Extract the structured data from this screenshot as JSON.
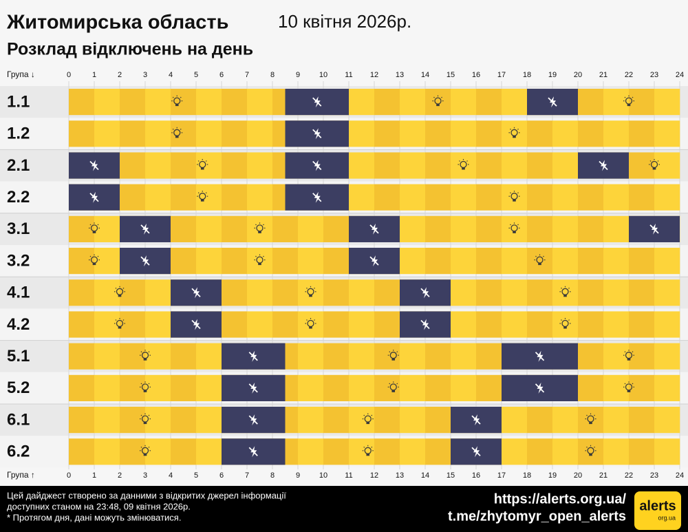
{
  "chart_data": {
    "type": "timeline",
    "title": "Житомирська область",
    "date": "10 квітня 2026р.",
    "subtitle": "Розклад відключень на день",
    "axis_label_top": "Група ↓",
    "axis_label_bottom": "Група ↑",
    "xlim": [
      0,
      24
    ],
    "xticks": [
      0,
      1,
      2,
      3,
      4,
      5,
      6,
      7,
      8,
      9,
      10,
      11,
      12,
      13,
      14,
      15,
      16,
      17,
      18,
      19,
      20,
      21,
      22,
      23,
      24
    ],
    "colors": {
      "on": "#f4c231",
      "on_alt": "#fdd43a",
      "off": "#3c3e62"
    },
    "rows": [
      {
        "name": "1.1",
        "outages": [
          [
            8.5,
            11
          ],
          [
            18,
            20
          ]
        ]
      },
      {
        "name": "1.2",
        "outages": [
          [
            8.5,
            11
          ]
        ]
      },
      {
        "name": "2.1",
        "outages": [
          [
            0,
            2
          ],
          [
            8.5,
            11
          ],
          [
            20,
            22
          ]
        ]
      },
      {
        "name": "2.2",
        "outages": [
          [
            0,
            2
          ],
          [
            8.5,
            11
          ]
        ]
      },
      {
        "name": "3.1",
        "outages": [
          [
            2,
            4
          ],
          [
            11,
            13
          ],
          [
            22,
            24
          ]
        ]
      },
      {
        "name": "3.2",
        "outages": [
          [
            2,
            4
          ],
          [
            11,
            13
          ]
        ]
      },
      {
        "name": "4.1",
        "outages": [
          [
            4,
            6
          ],
          [
            13,
            15
          ]
        ]
      },
      {
        "name": "4.2",
        "outages": [
          [
            4,
            6
          ],
          [
            13,
            15
          ]
        ]
      },
      {
        "name": "5.1",
        "outages": [
          [
            6,
            8.5
          ],
          [
            17,
            20
          ]
        ]
      },
      {
        "name": "5.2",
        "outages": [
          [
            6,
            8.5
          ],
          [
            17,
            20
          ]
        ]
      },
      {
        "name": "6.1",
        "outages": [
          [
            6,
            8.5
          ],
          [
            15,
            17
          ]
        ]
      },
      {
        "name": "6.2",
        "outages": [
          [
            6,
            8.5
          ],
          [
            15,
            17
          ]
        ]
      }
    ]
  },
  "footer": {
    "note": [
      "Цей дайджест створено за данними з відкритих джерел інформації",
      "доступних станом на 23:48, 09 квітня 2026р.",
      "* Протягом дня, дані можуть змінюватися."
    ],
    "links": [
      "https://alerts.org.ua/",
      "t.me/zhytomyr_open_alerts"
    ],
    "logo": {
      "name": "alerts",
      "domain": "org.ua"
    }
  }
}
